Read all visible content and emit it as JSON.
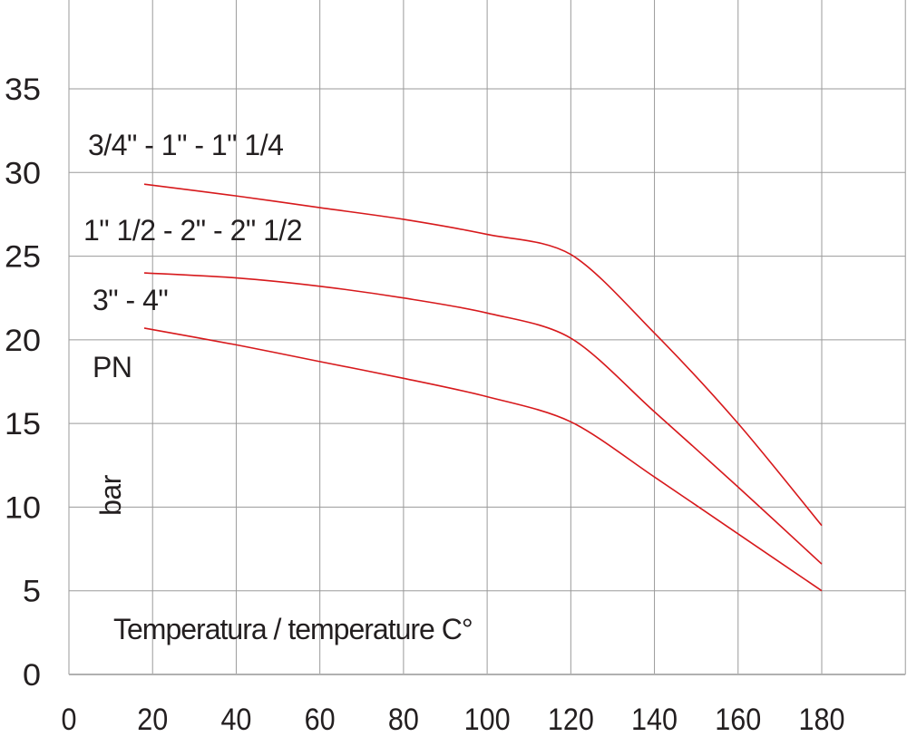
{
  "chart_data": {
    "type": "line",
    "title": "",
    "xlabel": "Temperatura / temperature C°",
    "ylabel_top": "PN",
    "ylabel_bottom": "bar",
    "xlim": [
      0,
      200
    ],
    "ylim": [
      0,
      40
    ],
    "xticks": [
      "0",
      "20",
      "40",
      "60",
      "80",
      "100",
      "120",
      "140",
      "160",
      "180"
    ],
    "yticks": [
      "0",
      "5",
      "10",
      "15",
      "20",
      "25",
      "30",
      "35"
    ],
    "grid": true,
    "line_color": "#d7191c",
    "series": [
      {
        "name": "3/4\" - 1\" - 1\" 1/4",
        "x": [
          18,
          40,
          60,
          80,
          100,
          120,
          140,
          160,
          180
        ],
        "y": [
          29.3,
          28.6,
          27.9,
          27.2,
          26.3,
          25.1,
          20.4,
          15.0,
          8.9
        ]
      },
      {
        "name": "1\" 1/2 - 2\" - 2\" 1/2",
        "x": [
          18,
          40,
          60,
          80,
          100,
          120,
          140,
          160,
          180
        ],
        "y": [
          24.0,
          23.7,
          23.2,
          22.5,
          21.6,
          20.1,
          15.7,
          11.2,
          6.6
        ]
      },
      {
        "name": "3\" - 4\"",
        "x": [
          18,
          40,
          60,
          80,
          100,
          120,
          140,
          160,
          180
        ],
        "y": [
          20.7,
          19.7,
          18.7,
          17.7,
          16.6,
          15.1,
          11.8,
          8.4,
          5.0
        ]
      }
    ]
  }
}
